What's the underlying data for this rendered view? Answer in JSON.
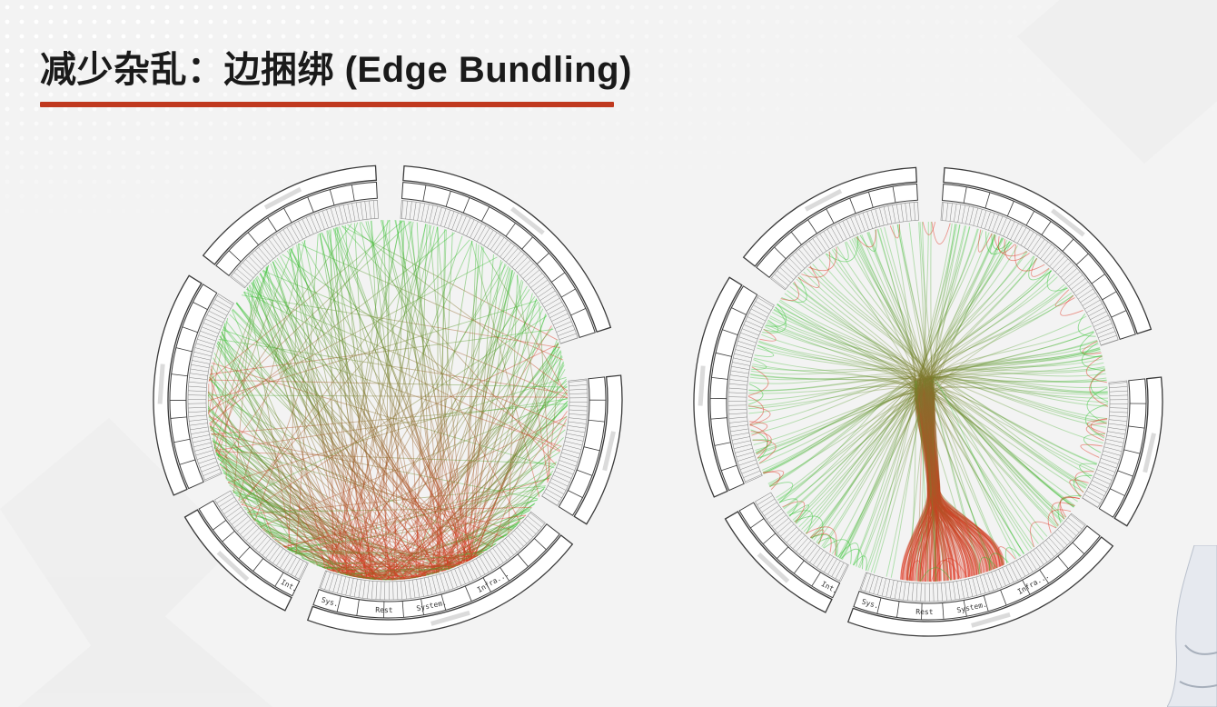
{
  "slide": {
    "title": "减少杂乱：边捆绑 (Edge Bundling)"
  },
  "colors": {
    "title_underline": "#c0391f",
    "edge_source": "#2ec42e",
    "edge_target": "#e0321e",
    "edge_mid": "#8a6a2a",
    "ring_stroke": "#3a3a3a",
    "background": "#f3f3f3"
  },
  "diagrams": [
    {
      "name": "unbundled-hierarchical-graph",
      "layout": "radial hierarchy, straight edges",
      "edge_style": "straight"
    },
    {
      "name": "bundled-hierarchical-graph",
      "layout": "radial hierarchy, hierarchical edge bundling",
      "edge_style": "bundled"
    }
  ],
  "ring_labels": {
    "legible": [
      "Int.",
      "Sys.",
      "Rest",
      "System.",
      "Infra..."
    ]
  }
}
